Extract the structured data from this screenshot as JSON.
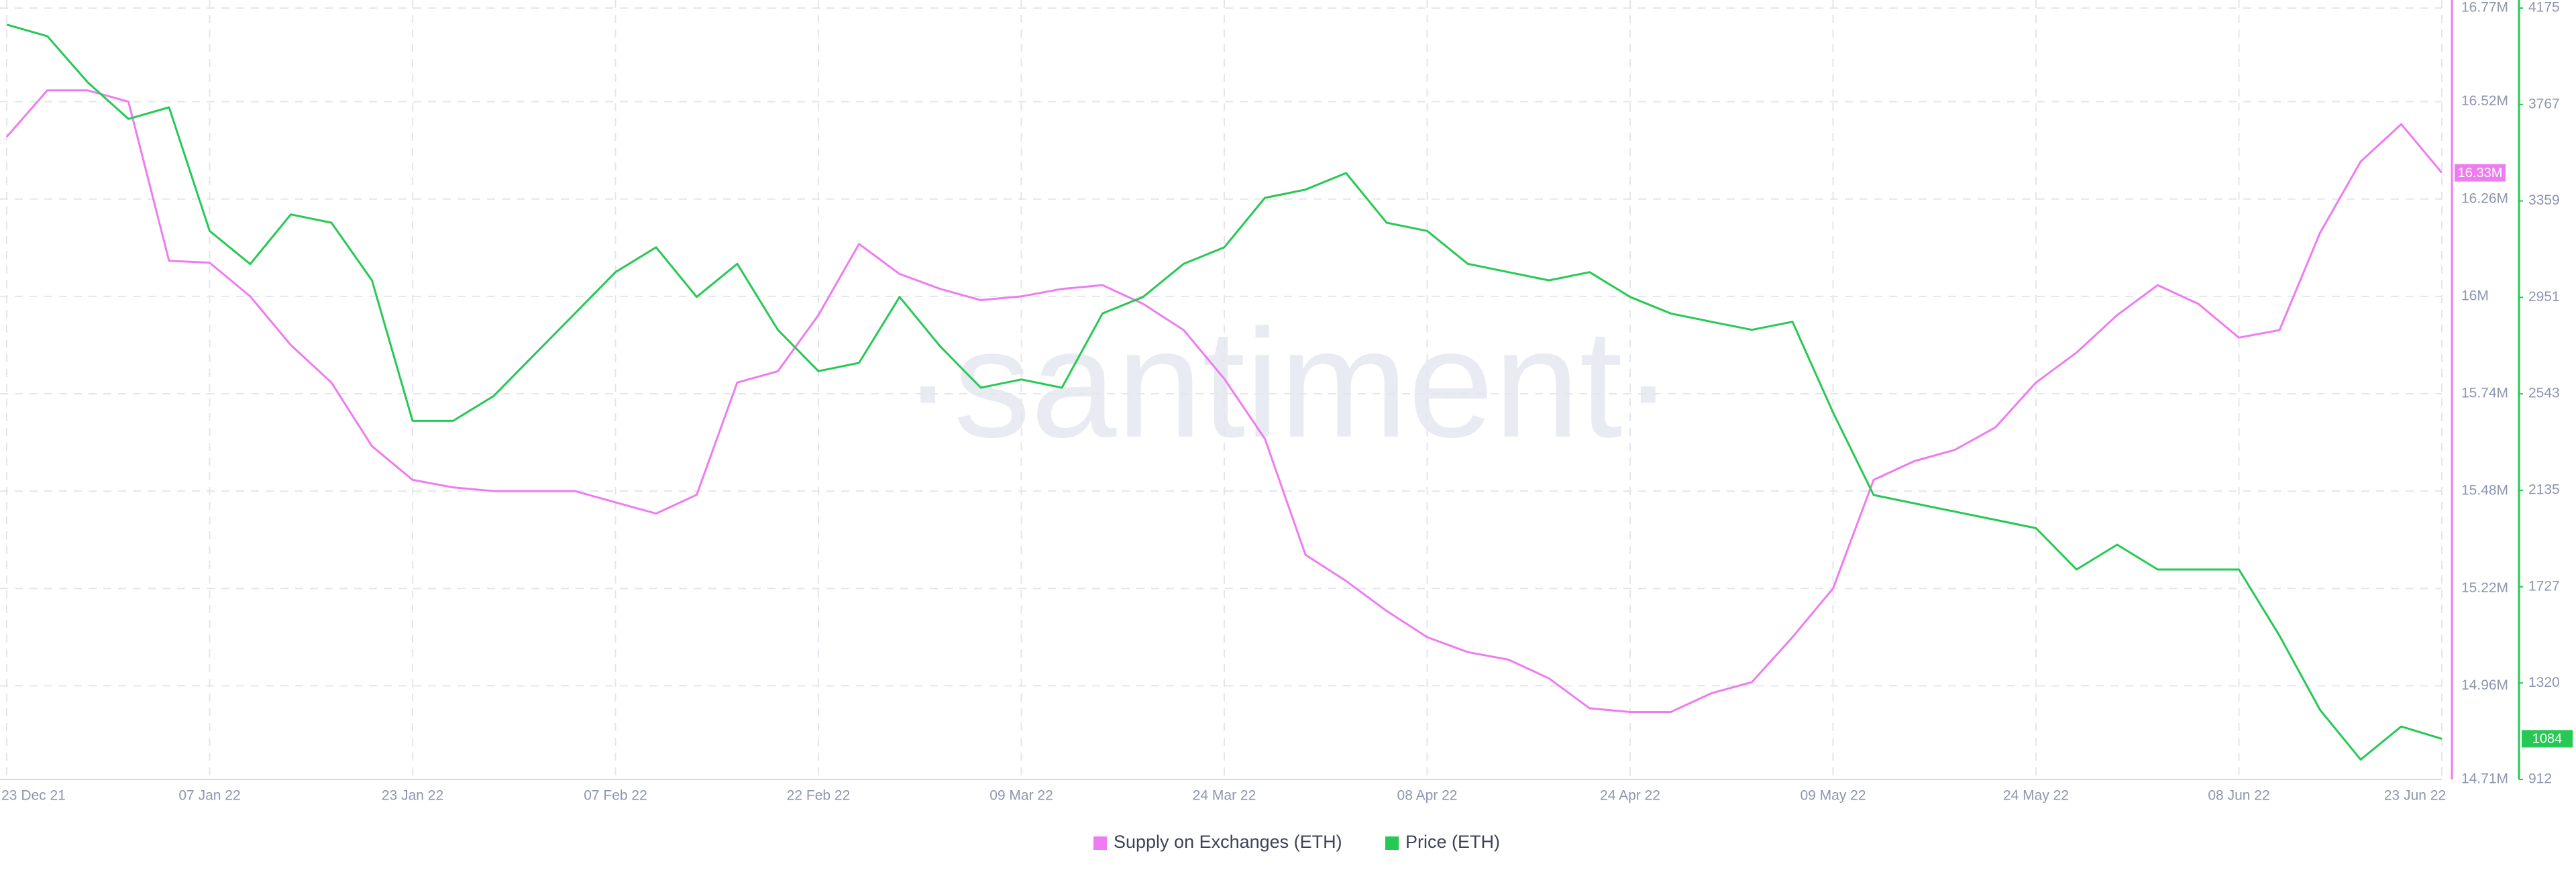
{
  "chart_data": {
    "type": "line",
    "watermark": "·santiment·",
    "categories": [
      "23 Dec 21",
      null,
      null,
      null,
      null,
      "07 Jan 22",
      null,
      null,
      null,
      null,
      "23 Jan 22",
      null,
      null,
      null,
      null,
      "07 Feb 22",
      null,
      null,
      null,
      null,
      "22 Feb 22",
      null,
      null,
      null,
      null,
      "09 Mar 22",
      null,
      null,
      null,
      null,
      "24 Mar 22",
      null,
      null,
      null,
      null,
      "08 Apr 22",
      null,
      null,
      null,
      null,
      "24 Apr 22",
      null,
      null,
      null,
      null,
      "09 May 22",
      null,
      null,
      null,
      null,
      "24 May 22",
      null,
      null,
      null,
      null,
      "08 Jun 22",
      null,
      null,
      null,
      null,
      "23 Jun 22"
    ],
    "ylim": [
      14710000,
      16770000
    ],
    "yticks": [
      {
        "value": 16770000,
        "label": "16.77M"
      },
      {
        "value": 16520000,
        "label": "16.52M"
      },
      {
        "value": 16260000,
        "label": "16.26M"
      },
      {
        "value": 16000000,
        "label": "16M"
      },
      {
        "value": 15740000,
        "label": "15.74M"
      },
      {
        "value": 15480000,
        "label": "15.48M"
      },
      {
        "value": 15220000,
        "label": "15.22M"
      },
      {
        "value": 14960000,
        "label": "14.96M"
      },
      {
        "value": 14710000,
        "label": "14.71M"
      }
    ],
    "y2lim": [
      912,
      4175
    ],
    "y2ticks": [
      4175,
      3767,
      3359,
      2951,
      2543,
      2135,
      1727,
      1320,
      912
    ],
    "grid": true,
    "legend": "bottom",
    "series": [
      {
        "name": "Supply on Exchanges (ETH)",
        "color": "#ee7cf0",
        "badge": "16.33M",
        "values": [
          16426000,
          16550000,
          16550000,
          16520000,
          16095000,
          16090000,
          16000000,
          15870000,
          15770000,
          15600000,
          15510000,
          15490000,
          15480000,
          15480000,
          15480000,
          15450000,
          15420000,
          15470000,
          15770000,
          15800000,
          15950000,
          16140000,
          16060000,
          16020000,
          15990000,
          16000000,
          16020000,
          16030000,
          15980000,
          15910000,
          15780000,
          15620000,
          15310000,
          15240000,
          15160000,
          15090000,
          15050000,
          15030000,
          14980000,
          14900000,
          14890000,
          14890000,
          14940000,
          14970000,
          15090000,
          15220000,
          15510000,
          15560000,
          15590000,
          15650000,
          15770000,
          15850000,
          15950000,
          16030000,
          15980000,
          15890000,
          15910000,
          16170000,
          16360000,
          16460000,
          16330000
        ]
      },
      {
        "name": "Price (ETH)",
        "color": "#26c953",
        "axis": "y2",
        "badge": "1084",
        "values": [
          4105,
          4056,
          3860,
          3706,
          3755,
          3232,
          3092,
          3302,
          3267,
          3023,
          2429,
          2429,
          2534,
          2709,
          2883,
          3058,
          3163,
          2953,
          3093,
          2814,
          2639,
          2674,
          2953,
          2744,
          2569,
          2604,
          2569,
          2883,
          2953,
          3093,
          3163,
          3372,
          3407,
          3477,
          3267,
          3232,
          3093,
          3058,
          3023,
          3058,
          2953,
          2883,
          2848,
          2814,
          2848,
          2464,
          2115,
          2080,
          2045,
          2010,
          1975,
          1800,
          1905,
          1800,
          1800,
          1800,
          1520,
          1206,
          996,
          1136,
          1084
        ]
      }
    ]
  }
}
